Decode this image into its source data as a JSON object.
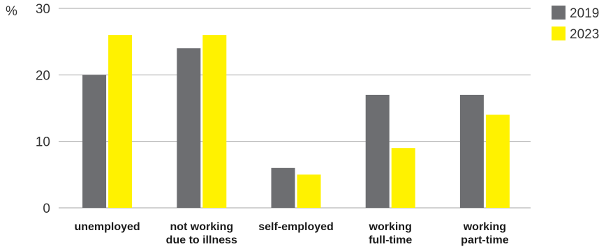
{
  "chart_data": {
    "type": "bar",
    "ylabel": "%",
    "ylim": [
      0,
      30
    ],
    "yticks": [
      0,
      10,
      20,
      30
    ],
    "grid": true,
    "legend_position": "right",
    "categories": [
      [
        "unemployed"
      ],
      [
        "not working",
        "due to illness"
      ],
      [
        "self-employed"
      ],
      [
        "working",
        "full-time"
      ],
      [
        "working",
        "part-time"
      ]
    ],
    "series": [
      {
        "name": "2019",
        "color": "#6d6e71",
        "values": [
          20,
          24,
          6,
          17,
          17
        ]
      },
      {
        "name": "2023",
        "color": "#fff200",
        "values": [
          26,
          26,
          5,
          9,
          14
        ]
      }
    ]
  }
}
